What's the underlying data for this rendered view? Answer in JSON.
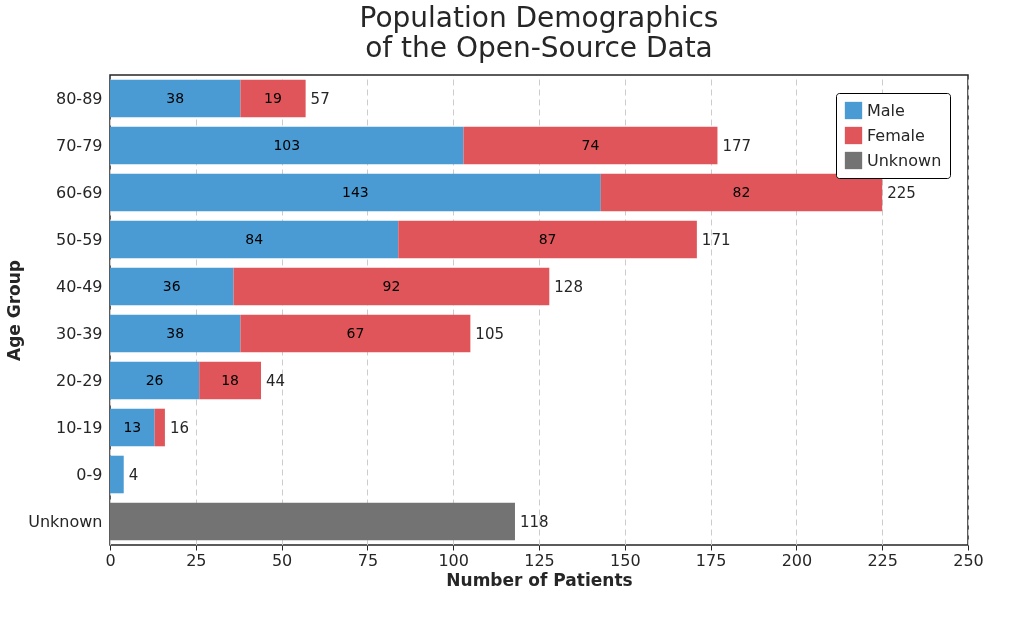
{
  "chart_data": {
    "type": "bar",
    "orientation": "horizontal",
    "stacked": true,
    "title": "Population Demographics\nof the Open-Source Data",
    "xlabel": "Number of Patients",
    "ylabel": "Age Group",
    "categories": [
      "80-89",
      "70-79",
      "60-69",
      "50-59",
      "40-49",
      "30-39",
      "20-29",
      "10-19",
      "0-9",
      "Unknown"
    ],
    "series": [
      {
        "name": "Male",
        "color": "#4a9bd3",
        "values": [
          38,
          103,
          143,
          84,
          36,
          38,
          26,
          13,
          4,
          null
        ],
        "value_labels": [
          "38",
          "103",
          "143",
          "84",
          "36",
          "38",
          "26",
          "13",
          null,
          null
        ]
      },
      {
        "name": "Female",
        "color": "#e05559",
        "values": [
          19,
          74,
          82,
          87,
          92,
          67,
          18,
          3,
          null,
          null
        ],
        "value_labels": [
          "19",
          "74",
          "82",
          "87",
          "92",
          "67",
          "18",
          null,
          null,
          null
        ]
      },
      {
        "name": "Unknown",
        "color": "#737373",
        "values": [
          null,
          null,
          null,
          null,
          null,
          null,
          null,
          null,
          null,
          118
        ],
        "value_labels": [
          null,
          null,
          null,
          null,
          null,
          null,
          null,
          null,
          null,
          null
        ]
      }
    ],
    "totals": [
      "57",
      "177",
      "225",
      "171",
      "128",
      "105",
      "44",
      "16",
      "4",
      "118"
    ],
    "xlim": [
      0,
      250
    ],
    "xticks": [
      0,
      25,
      50,
      75,
      100,
      125,
      150,
      175,
      200,
      225,
      250
    ],
    "grid": "x",
    "legend": "top right"
  }
}
